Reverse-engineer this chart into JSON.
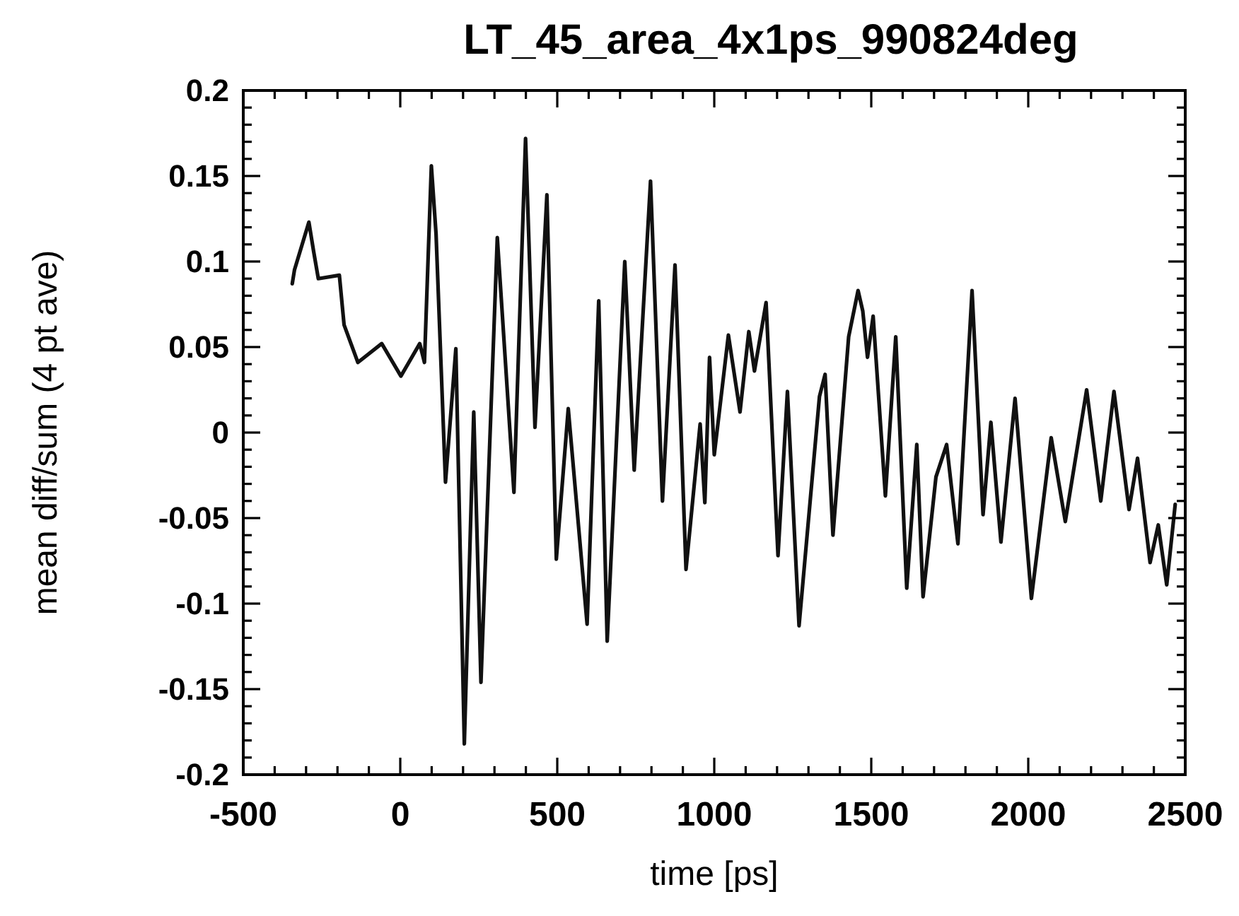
{
  "chart_data": {
    "type": "line",
    "title": "LT_45_area_4x1ps_990824deg",
    "xlabel": "time [ps]",
    "ylabel": "mean diff/sum (4 pt ave)",
    "xlim": [
      -500,
      2500
    ],
    "xticks": [
      -500,
      {
        "value": -400,
        "label": null
      },
      {
        "value": -300,
        "label": null
      },
      {
        "value": -200,
        "label": null
      },
      {
        "value": -100,
        "label": null
      },
      0,
      {
        "value": 100,
        "label": null
      },
      {
        "value": 200,
        "label": null
      },
      {
        "value": 300,
        "label": null
      },
      {
        "value": 400,
        "label": null
      },
      500,
      {
        "value": 600,
        "label": null
      },
      {
        "value": 700,
        "label": null
      },
      {
        "value": 800,
        "label": null
      },
      {
        "value": 900,
        "label": null
      },
      1000,
      {
        "value": 1100,
        "label": null
      },
      {
        "value": 1200,
        "label": null
      },
      {
        "value": 1300,
        "label": null
      },
      {
        "value": 1400,
        "label": null
      },
      1500,
      {
        "value": 1600,
        "label": null
      },
      {
        "value": 1700,
        "label": null
      },
      {
        "value": 1800,
        "label": null
      },
      {
        "value": 1900,
        "label": null
      },
      2000,
      {
        "value": 2100,
        "label": null
      },
      {
        "value": 2200,
        "label": null
      },
      {
        "value": 2300,
        "label": null
      },
      {
        "value": 2400,
        "label": null
      },
      2500
    ],
    "ylim": [
      -0.2,
      0.2
    ],
    "yticks": [
      -0.2,
      {
        "value": -0.19,
        "label": null
      },
      {
        "value": -0.18,
        "label": null
      },
      {
        "value": -0.17,
        "label": null
      },
      {
        "value": -0.16,
        "label": null
      },
      -0.15,
      {
        "value": -0.14,
        "label": null
      },
      {
        "value": -0.13,
        "label": null
      },
      {
        "value": -0.12,
        "label": null
      },
      {
        "value": -0.11,
        "label": null
      },
      -0.1,
      {
        "value": -0.09,
        "label": null
      },
      {
        "value": -0.08,
        "label": null
      },
      {
        "value": -0.07,
        "label": null
      },
      {
        "value": -0.06,
        "label": null
      },
      -0.05,
      {
        "value": -0.04,
        "label": null
      },
      {
        "value": -0.03,
        "label": null
      },
      {
        "value": -0.02,
        "label": null
      },
      {
        "value": -0.01,
        "label": null
      },
      0,
      {
        "value": 0.01,
        "label": null
      },
      {
        "value": 0.02,
        "label": null
      },
      {
        "value": 0.03,
        "label": null
      },
      {
        "value": 0.04,
        "label": null
      },
      0.05,
      {
        "value": 0.06,
        "label": null
      },
      {
        "value": 0.07,
        "label": null
      },
      {
        "value": 0.08,
        "label": null
      },
      {
        "value": 0.09,
        "label": null
      },
      0.1,
      {
        "value": 0.11,
        "label": null
      },
      {
        "value": 0.12,
        "label": null
      },
      {
        "value": 0.13,
        "label": null
      },
      {
        "value": 0.14,
        "label": null
      },
      0.15,
      {
        "value": 0.16,
        "label": null
      },
      {
        "value": 0.17,
        "label": null
      },
      {
        "value": 0.18,
        "label": null
      },
      {
        "value": 0.19,
        "label": null
      },
      0.2
    ],
    "grid": false,
    "marker": "none",
    "line_style": "solid",
    "series": [
      {
        "color": "#111111",
        "x": [
          -344,
          -337,
          -291,
          -276,
          -261,
          -194,
          -179,
          -135,
          -59,
          2,
          62,
          77,
          99,
          114,
          144,
          177,
          204,
          234,
          257,
          309,
          362,
          399,
          429,
          467,
          497,
          535,
          595,
          632,
          659,
          715,
          745,
          797,
          835,
          875,
          910,
          955,
          970,
          985,
          1000,
          1045,
          1082,
          1110,
          1128,
          1165,
          1203,
          1233,
          1270,
          1335,
          1353,
          1378,
          1428,
          1458,
          1473,
          1488,
          1506,
          1545,
          1578,
          1613,
          1645,
          1665,
          1706,
          1740,
          1776,
          1821,
          1856,
          1881,
          1913,
          1958,
          2010,
          2073,
          2118,
          2186,
          2231,
          2273,
          2321,
          2348,
          2388,
          2414,
          2441,
          2468
        ],
        "values": [
          0.087,
          0.095,
          0.123,
          0.106,
          0.09,
          0.092,
          0.063,
          0.041,
          0.052,
          0.033,
          0.052,
          0.041,
          0.156,
          0.116,
          -0.029,
          0.049,
          -0.182,
          0.012,
          -0.146,
          0.114,
          -0.035,
          0.172,
          0.003,
          0.139,
          -0.074,
          0.014,
          -0.112,
          0.077,
          -0.122,
          0.1,
          -0.022,
          0.147,
          -0.04,
          0.098,
          -0.08,
          0.005,
          -0.041,
          0.044,
          -0.013,
          0.057,
          0.012,
          0.059,
          0.036,
          0.076,
          -0.072,
          0.024,
          -0.113,
          0.021,
          0.034,
          -0.06,
          0.056,
          0.083,
          0.071,
          0.044,
          0.068,
          -0.037,
          0.056,
          -0.091,
          -0.007,
          -0.096,
          -0.026,
          -0.007,
          -0.065,
          0.083,
          -0.048,
          0.006,
          -0.064,
          0.02,
          -0.097,
          -0.003,
          -0.052,
          0.025,
          -0.04,
          0.024,
          -0.045,
          -0.015,
          -0.076,
          -0.054,
          -0.089,
          -0.042
        ]
      }
    ]
  }
}
